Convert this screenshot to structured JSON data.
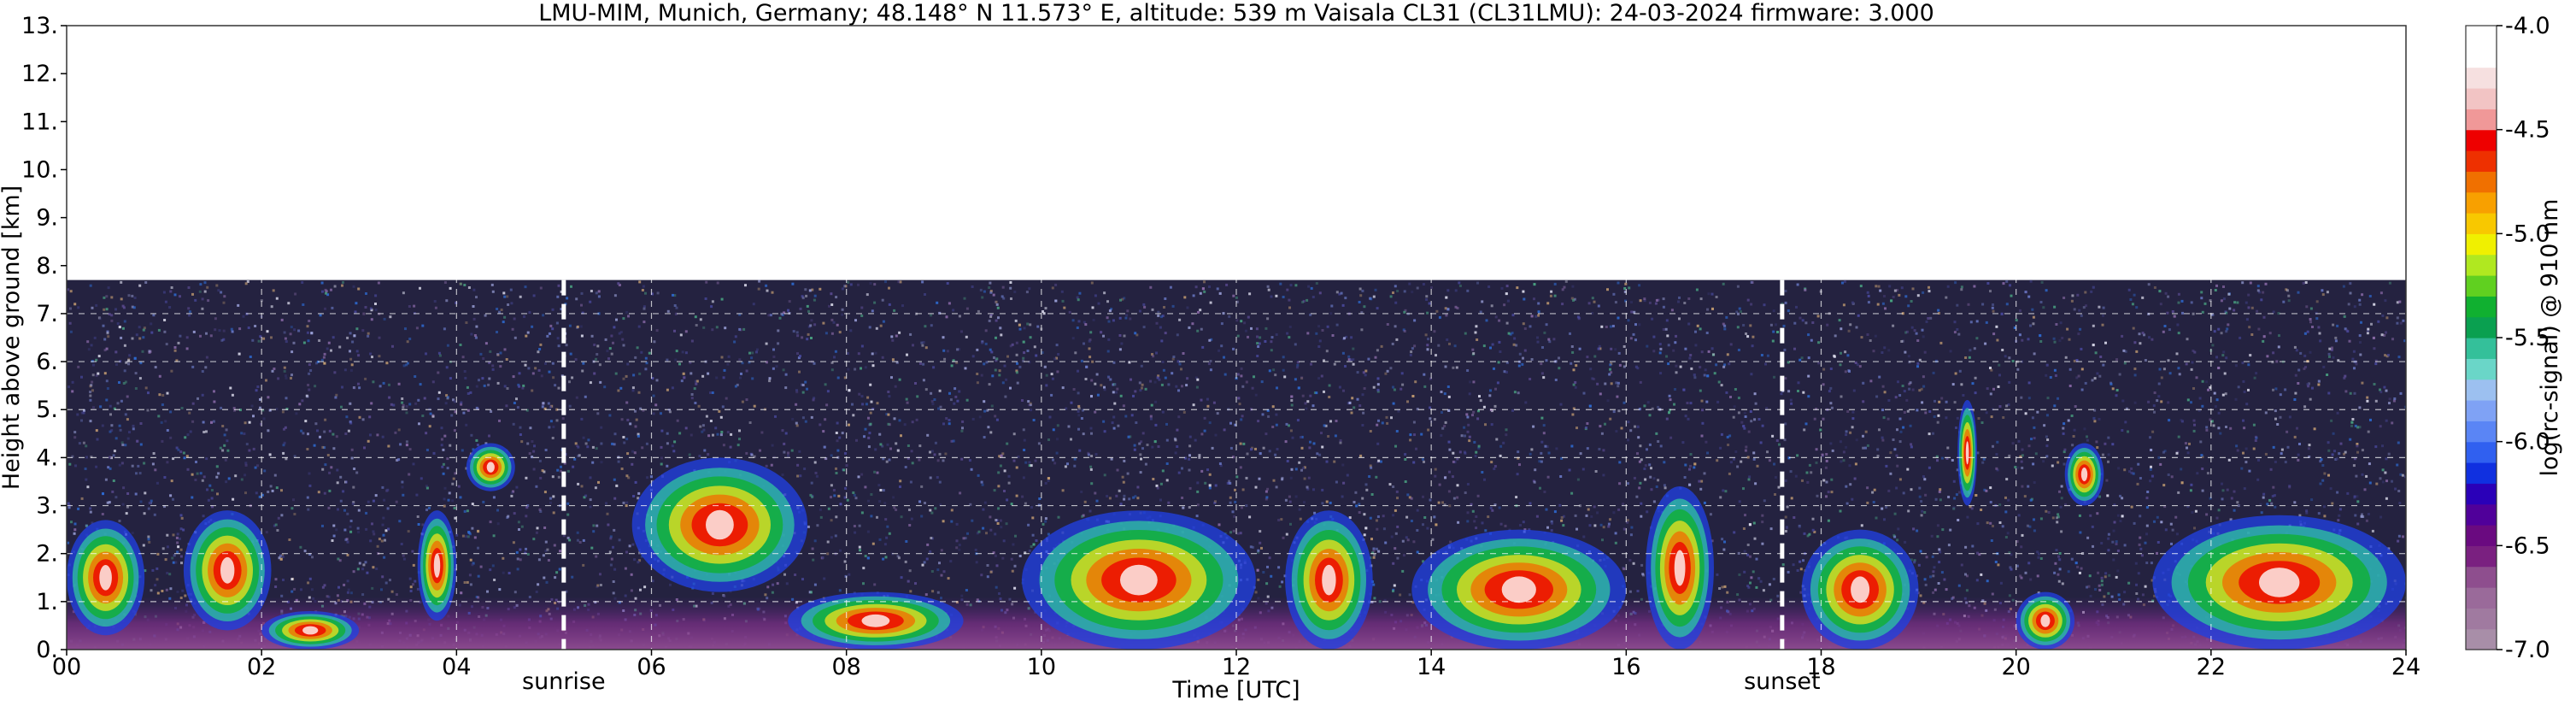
{
  "chart_data": {
    "type": "heatmap",
    "title": "LMU-MIM, Munich, Germany; 48.148° N 11.573° E, altitude: 539 m    Vaisala CL31 (CL31LMU): 24-03-2024    firmware: 3.000",
    "xlabel": "Time [UTC]",
    "ylabel": "Height above ground [km]",
    "xlim": [
      0,
      24
    ],
    "ylim": [
      0,
      13
    ],
    "x_ticks": [
      0,
      2,
      4,
      6,
      8,
      10,
      12,
      14,
      16,
      18,
      20,
      22,
      24
    ],
    "x_tick_labels": [
      "00",
      "02",
      "04",
      "06",
      "08",
      "10",
      "12",
      "14",
      "16",
      "18",
      "20",
      "22",
      "24"
    ],
    "y_ticks": [
      0,
      1,
      2,
      3,
      4,
      5,
      6,
      7,
      8,
      9,
      10,
      11,
      12,
      13
    ],
    "y_tick_labels": [
      "0.",
      "1.",
      "2.",
      "3.",
      "4.",
      "5.",
      "6.",
      "7.",
      "8.",
      "9.",
      "10.",
      "11.",
      "12.",
      "13."
    ],
    "grid": true,
    "data_top_km": 7.7,
    "markers": [
      {
        "label": "sunrise",
        "time": 5.1
      },
      {
        "label": "sunset",
        "time": 17.6
      }
    ],
    "colorbar": {
      "label": "log(rc-signal) @ 910 nm",
      "range": [
        -7.0,
        -4.0
      ],
      "ticks": [
        -7.0,
        -6.5,
        -6.0,
        -5.5,
        -5.0,
        -4.5,
        -4.0
      ],
      "tick_labels": [
        "-7.0",
        "-6.5",
        "-6.0",
        "-5.5",
        "-5.0",
        "-4.5",
        "-4.0"
      ],
      "colors": [
        "#a88ea8",
        "#a07aa0",
        "#9a6a9a",
        "#8e4e8e",
        "#7a2080",
        "#6a0a80",
        "#50009a",
        "#2a00b8",
        "#1030e0",
        "#3060f0",
        "#5a85f5",
        "#7fa2f5",
        "#9cc0f0",
        "#6ad6c8",
        "#34c09a",
        "#0aa050",
        "#10b030",
        "#60d020",
        "#b0e820",
        "#f0f000",
        "#f8c800",
        "#f8a000",
        "#f07000",
        "#ee3000",
        "#ee0000",
        "#f09898",
        "#f2c4c4",
        "#f6e0e0",
        "#ffffff",
        "#ffffff"
      ]
    },
    "features": [
      {
        "kind": "cloud",
        "t0": 0.0,
        "t1": 0.8,
        "base_km": 0.3,
        "top_km": 2.7
      },
      {
        "kind": "cloud",
        "t0": 1.2,
        "t1": 2.1,
        "base_km": 0.4,
        "top_km": 2.9
      },
      {
        "kind": "cloud",
        "t0": 2.0,
        "t1": 3.0,
        "base_km": 0.0,
        "top_km": 0.8
      },
      {
        "kind": "cloud",
        "t0": 3.6,
        "t1": 4.0,
        "base_km": 0.6,
        "top_km": 2.9
      },
      {
        "kind": "cloud",
        "t0": 4.1,
        "t1": 4.6,
        "base_km": 3.3,
        "top_km": 4.3
      },
      {
        "kind": "cloud",
        "t0": 5.8,
        "t1": 7.6,
        "base_km": 1.2,
        "top_km": 4.0
      },
      {
        "kind": "cloud",
        "t0": 7.4,
        "t1": 9.2,
        "base_km": 0.0,
        "top_km": 1.2
      },
      {
        "kind": "cloud",
        "t0": 9.8,
        "t1": 12.2,
        "base_km": 0.0,
        "top_km": 2.9
      },
      {
        "kind": "cloud",
        "t0": 12.5,
        "t1": 13.4,
        "base_km": 0.0,
        "top_km": 2.9
      },
      {
        "kind": "cloud",
        "t0": 13.8,
        "t1": 16.0,
        "base_km": 0.0,
        "top_km": 2.5
      },
      {
        "kind": "cloud",
        "t0": 16.2,
        "t1": 16.9,
        "base_km": 0.0,
        "top_km": 3.4
      },
      {
        "kind": "cloud",
        "t0": 17.8,
        "t1": 19.0,
        "base_km": 0.0,
        "top_km": 2.5
      },
      {
        "kind": "cloud",
        "t0": 19.4,
        "t1": 19.6,
        "base_km": 3.0,
        "top_km": 5.2
      },
      {
        "kind": "cloud",
        "t0": 20.5,
        "t1": 20.9,
        "base_km": 3.0,
        "top_km": 4.3
      },
      {
        "kind": "cloud",
        "t0": 20.0,
        "t1": 20.6,
        "base_km": 0.0,
        "top_km": 1.2
      },
      {
        "kind": "cloud",
        "t0": 21.4,
        "t1": 24.0,
        "base_km": 0.0,
        "top_km": 2.8
      }
    ]
  }
}
